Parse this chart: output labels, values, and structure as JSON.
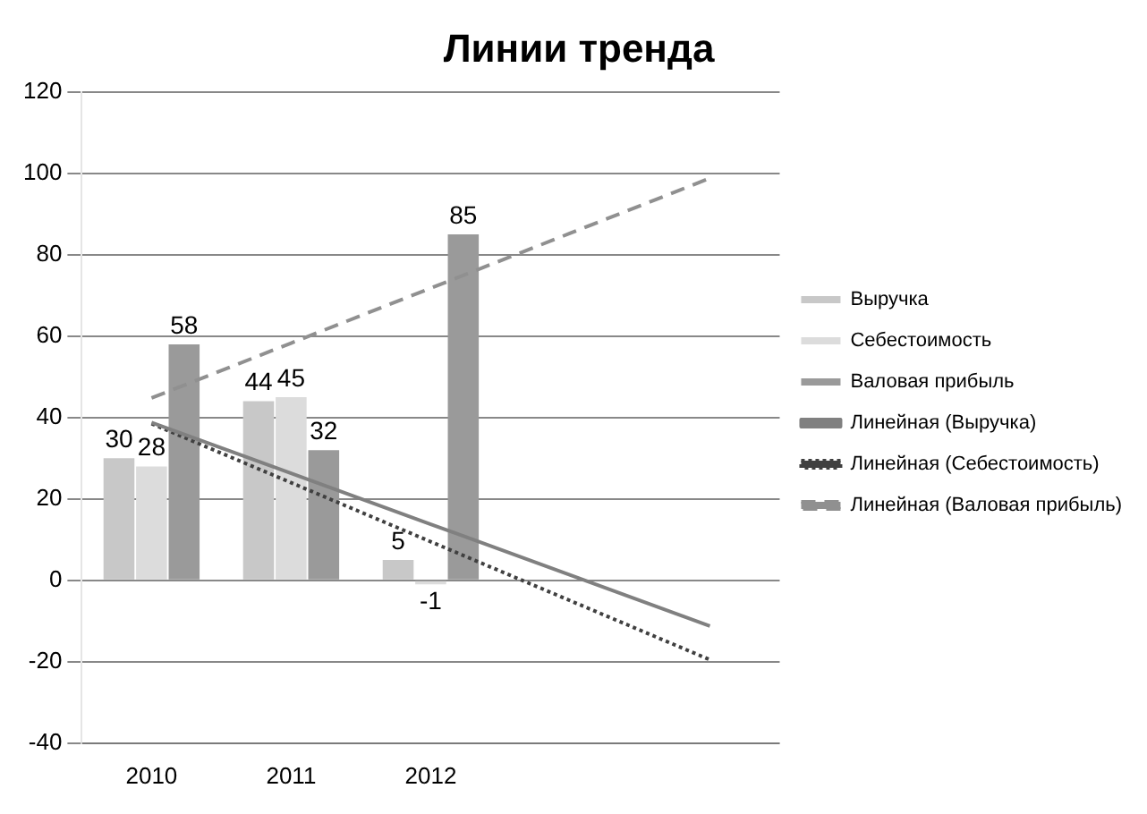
{
  "chart_data": {
    "type": "bar",
    "title": "Линии тренда",
    "categories": [
      "2010",
      "2011",
      "2012",
      null,
      null
    ],
    "series": [
      {
        "name": "Выручка",
        "color": "#c8c8c8",
        "values": [
          30,
          44,
          5,
          null,
          null
        ],
        "value_labels": [
          "30",
          "44",
          "5",
          null,
          null
        ]
      },
      {
        "name": "Себестоимость",
        "color": "#dcdcdc",
        "values": [
          28,
          45,
          -1,
          null,
          null
        ],
        "value_labels": [
          "28",
          "45",
          "-1",
          null,
          null
        ]
      },
      {
        "name": "Валовая прибыль",
        "color": "#9a9a9a",
        "values": [
          58,
          32,
          85,
          null,
          null
        ],
        "value_labels": [
          "58",
          "32",
          "85",
          null,
          null
        ]
      },
      {
        "name": "Линейная (Выручка)",
        "type": "line",
        "color": "#808080",
        "line_style": "solid",
        "values": [
          38.8,
          26.3,
          13.8,
          1.3,
          -11.2
        ]
      },
      {
        "name": "Линейная (Себестоимость)",
        "type": "line",
        "color": "#404040",
        "line_style": "dotted",
        "values": [
          38.5,
          24,
          9.5,
          -5,
          -19.5
        ]
      },
      {
        "name": "Линейная (Валовая прибыль)",
        "type": "line",
        "color": "#909090",
        "line_style": "dashed",
        "values": [
          44.8,
          58.3,
          71.8,
          85.3,
          98.8
        ]
      }
    ],
    "ylim": [
      -40,
      120
    ],
    "yticks": [
      -40,
      -20,
      0,
      20,
      40,
      60,
      80,
      100,
      120
    ],
    "grid": "y",
    "legend": "right",
    "marker": "none"
  }
}
